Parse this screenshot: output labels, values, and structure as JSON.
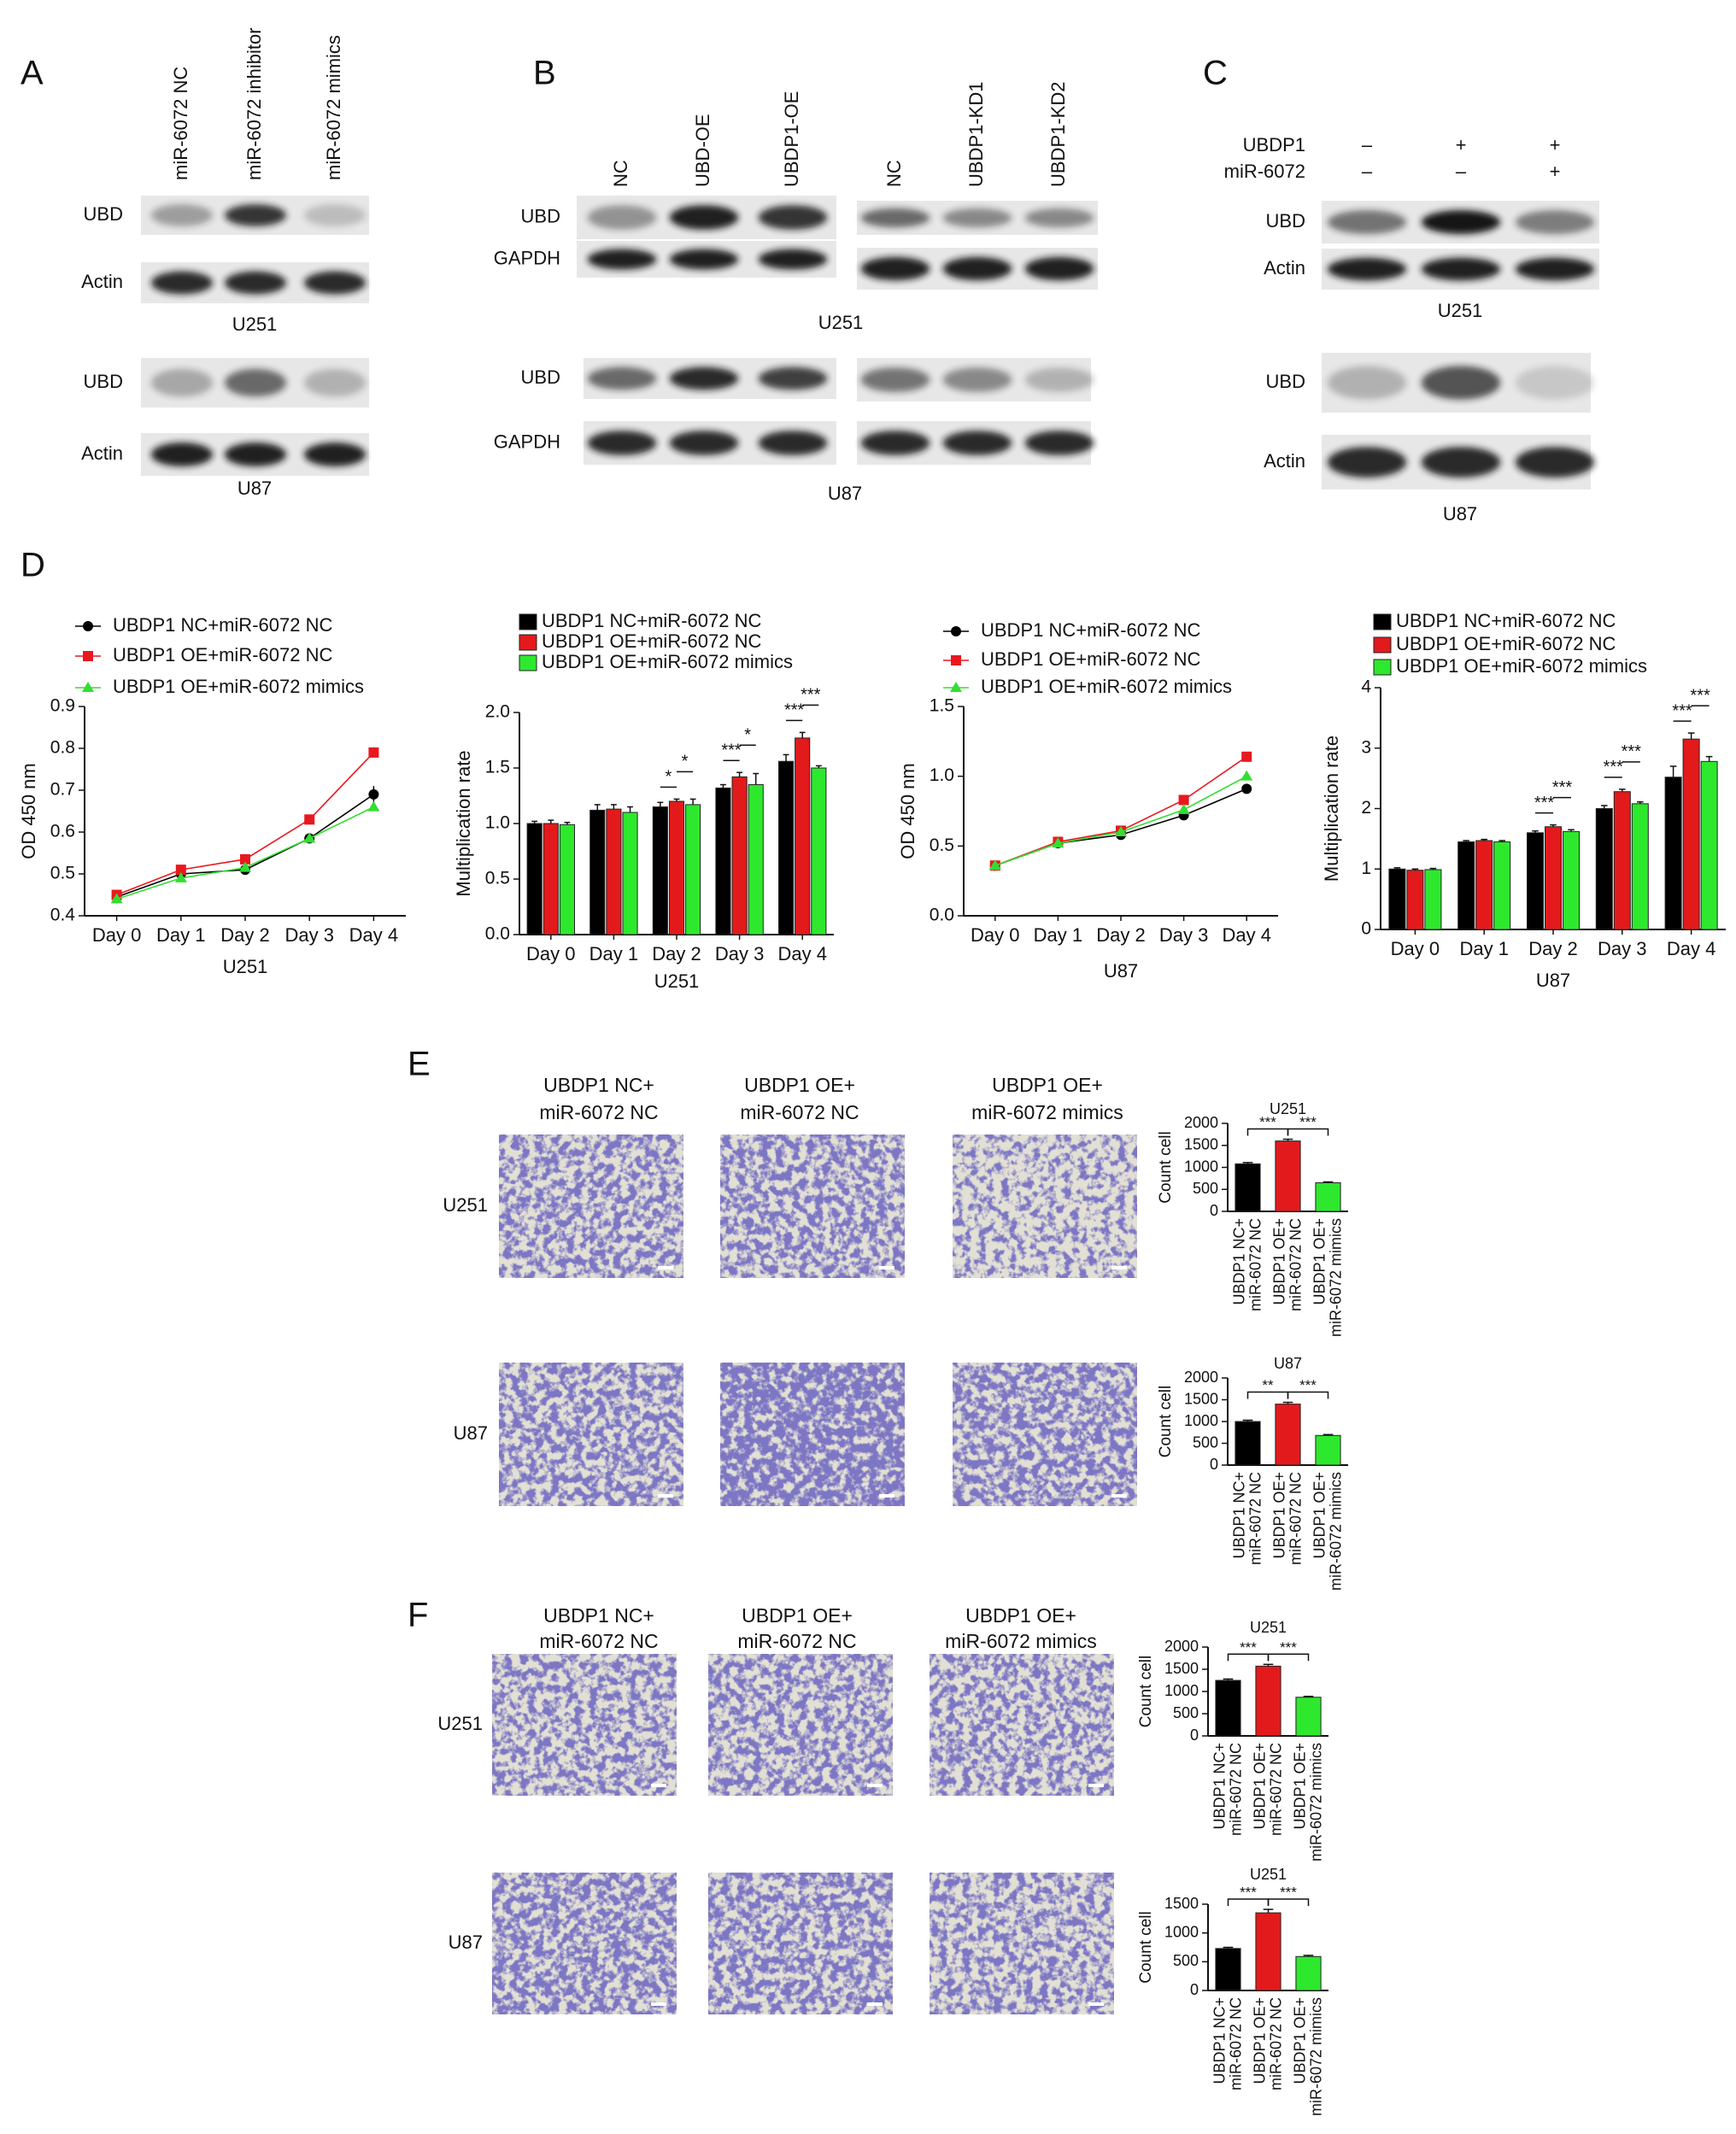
{
  "panel_letters": [
    "A",
    "B",
    "C",
    "D",
    "E",
    "F"
  ],
  "blots": [
    {
      "lanes": [
        "miR-6072 NC",
        "miR-6072 inhibitor",
        "miR-6072 mimics"
      ],
      "groups": [
        {
          "rows": [
            "UBD",
            "Actin"
          ],
          "cell": "U251"
        },
        {
          "rows": [
            "UBD",
            "Actin"
          ],
          "cell": "U87"
        }
      ]
    },
    {
      "lanes": [
        "NC",
        "UBD-OE",
        "UBDP1-OE",
        "NC",
        "UBDP1-KD1",
        "UBDP1-KD2"
      ],
      "groups": [
        {
          "rows": [
            "UBD",
            "GAPDH"
          ],
          "cell": "U251"
        },
        {
          "rows": [
            "UBD",
            "GAPDH"
          ],
          "cell": "U87"
        }
      ]
    },
    {
      "conditions": [
        {
          "name": "UBDP1",
          "marks": [
            "–",
            "+",
            "+"
          ]
        },
        {
          "name": "miR-6072",
          "marks": [
            "–",
            "–",
            "+"
          ]
        }
      ],
      "groups": [
        {
          "rows": [
            "UBD",
            "Actin"
          ],
          "cell": "U251"
        },
        {
          "rows": [
            "UBD",
            "Actin"
          ],
          "cell": "U87"
        }
      ]
    }
  ],
  "migration": [
    {
      "columns": [
        [
          "UBDP1 NC+",
          "miR-6072 NC"
        ],
        [
          "UBDP1 OE+",
          "miR-6072 NC"
        ],
        [
          "UBDP1 OE+",
          "miR-6072 mimics"
        ]
      ],
      "rows": [
        "U251",
        "U87"
      ]
    },
    {
      "columns": [
        [
          "UBDP1 NC+",
          "miR-6072 NC"
        ],
        [
          "UBDP1 OE+",
          "miR-6072 NC"
        ],
        [
          "UBDP1 OE+",
          "miR-6072 mimics"
        ]
      ],
      "rows": [
        "U251",
        "U87"
      ]
    }
  ],
  "chart_data": [
    {
      "type": "line",
      "xlabel": "U251",
      "ylabel": "OD 450 nm",
      "categories": [
        "Day 0",
        "Day 1",
        "Day 2",
        "Day 3",
        "Day 4"
      ],
      "ylim": [
        0.4,
        0.9
      ],
      "yticks": [
        0.4,
        0.5,
        0.6,
        0.7,
        0.8,
        0.9
      ],
      "series": [
        {
          "name": "UBDP1 NC+miR-6072 NC",
          "color": "#000000",
          "marker": "o",
          "values": [
            0.445,
            0.5,
            0.51,
            0.585,
            0.69
          ],
          "errors": [
            0.005,
            0.008,
            0.005,
            0.005,
            0.02
          ]
        },
        {
          "name": "UBDP1 OE+miR-6072 NC",
          "color": "#e8191e",
          "marker": "s",
          "values": [
            0.45,
            0.51,
            0.535,
            0.63,
            0.79
          ],
          "errors": [
            0.005,
            0.008,
            0.005,
            0.005,
            0.012
          ]
        },
        {
          "name": "UBDP1 OE+miR-6072 mimics",
          "color": "#33dd33",
          "marker": "^",
          "values": [
            0.44,
            0.49,
            0.515,
            0.585,
            0.66
          ],
          "errors": [
            0.005,
            0.005,
            0.005,
            0.005,
            0.005
          ]
        }
      ]
    },
    {
      "type": "bar",
      "xlabel": "U251",
      "ylabel": "Multiplication rate",
      "categories": [
        "Day 0",
        "Day 1",
        "Day 2",
        "Day 3",
        "Day 4"
      ],
      "ylim": [
        0,
        2
      ],
      "yticks": [
        {
          "value": 0,
          "label": "0.0"
        },
        0.5,
        {
          "value": 1,
          "label": "1.0"
        },
        1.5,
        {
          "value": 2,
          "label": "2.0"
        }
      ],
      "series": [
        {
          "name": "UBDP1 NC+miR-6072 NC",
          "color": "#000000",
          "values": [
            1.0,
            1.12,
            1.15,
            1.32,
            1.56
          ],
          "errors": [
            0.02,
            0.05,
            0.04,
            0.03,
            0.06
          ]
        },
        {
          "name": "UBDP1 OE+miR-6072 NC",
          "color": "#e31a1c",
          "values": [
            1.0,
            1.13,
            1.2,
            1.42,
            1.77
          ],
          "errors": [
            0.03,
            0.04,
            0.02,
            0.04,
            0.05
          ]
        },
        {
          "name": "UBDP1 OE+miR-6072 mimics",
          "color": "#2ee82e",
          "values": [
            0.99,
            1.1,
            1.17,
            1.35,
            1.5
          ],
          "errors": [
            0.02,
            0.05,
            0.05,
            0.1,
            0.02
          ]
        }
      ],
      "significance": [
        null,
        null,
        [
          "*",
          "*"
        ],
        [
          "***",
          "*"
        ],
        [
          "***",
          "***"
        ]
      ]
    },
    {
      "type": "line",
      "xlabel": "U87",
      "ylabel": "OD 450 nm",
      "categories": [
        "Day 0",
        "Day 1",
        "Day 2",
        "Day 3",
        "Day 4"
      ],
      "ylim": [
        0,
        1.5
      ],
      "yticks": [
        {
          "value": 0,
          "label": "0.0"
        },
        0.5,
        {
          "value": 1,
          "label": "1.0"
        },
        1.5
      ],
      "series": [
        {
          "name": "UBDP1 NC+miR-6072 NC",
          "color": "#000000",
          "marker": "o",
          "values": [
            0.36,
            0.52,
            0.58,
            0.72,
            0.91
          ],
          "errors": [
            0.02,
            0.02,
            0.02,
            0.02,
            0.02
          ]
        },
        {
          "name": "UBDP1 OE+miR-6072 NC",
          "color": "#e8191e",
          "marker": "s",
          "values": [
            0.36,
            0.53,
            0.61,
            0.83,
            1.14
          ],
          "errors": [
            0.02,
            0.02,
            0.02,
            0.02,
            0.02
          ]
        },
        {
          "name": "UBDP1 OE+miR-6072 mimics",
          "color": "#33dd33",
          "marker": "^",
          "values": [
            0.36,
            0.52,
            0.6,
            0.76,
            1.0
          ],
          "errors": [
            0.02,
            0.02,
            0.02,
            0.02,
            0.02
          ]
        }
      ]
    },
    {
      "type": "bar",
      "xlabel": "U87",
      "ylabel": "Multiplication rate",
      "categories": [
        "Day 0",
        "Day 1",
        "Day 2",
        "Day 3",
        "Day 4"
      ],
      "ylim": [
        0,
        4
      ],
      "yticks": [
        0,
        1,
        2,
        3,
        4
      ],
      "series": [
        {
          "name": "UBDP1 NC+miR-6072 NC",
          "color": "#000000",
          "values": [
            1.0,
            1.45,
            1.6,
            2.0,
            2.52
          ],
          "errors": [
            0.02,
            0.02,
            0.03,
            0.05,
            0.18
          ]
        },
        {
          "name": "UBDP1 OE+miR-6072 NC",
          "color": "#e31a1c",
          "values": [
            0.98,
            1.47,
            1.7,
            2.28,
            3.15
          ],
          "errors": [
            0.02,
            0.02,
            0.03,
            0.04,
            0.1
          ]
        },
        {
          "name": "UBDP1 OE+miR-6072 mimics",
          "color": "#2ee82e",
          "values": [
            0.99,
            1.45,
            1.62,
            2.08,
            2.78
          ],
          "errors": [
            0.02,
            0.02,
            0.03,
            0.03,
            0.08
          ]
        }
      ],
      "significance": [
        null,
        null,
        [
          "***",
          "***"
        ],
        [
          "***",
          "***"
        ],
        [
          "***",
          "***"
        ]
      ]
    },
    {
      "type": "bar",
      "title": "U251",
      "ylabel": "Count cell",
      "categories": [
        [
          "UBDP1 NC+",
          "miR-6072 NC"
        ],
        [
          "UBDP1 OE+",
          "miR-6072 NC"
        ],
        [
          "UBDP1 OE+",
          "miR-6072 mimics"
        ]
      ],
      "values": [
        1080,
        1600,
        650
      ],
      "errors": [
        30,
        40,
        20
      ],
      "colors": [
        "#000000",
        "#e31a1c",
        "#2ee82e"
      ],
      "ylim": [
        0,
        2000
      ],
      "yticks": [
        0,
        500,
        1000,
        1500,
        2000
      ],
      "significance": [
        "***",
        "***"
      ]
    },
    {
      "type": "bar",
      "title": "U87",
      "ylabel": "Count cell",
      "categories": [
        [
          "UBDP1 NC+",
          "miR-6072 NC"
        ],
        [
          "UBDP1 OE+",
          "miR-6072 NC"
        ],
        [
          "UBDP1 OE+",
          "miR-6072 mimics"
        ]
      ],
      "values": [
        1000,
        1400,
        680
      ],
      "errors": [
        30,
        40,
        20
      ],
      "colors": [
        "#000000",
        "#e31a1c",
        "#2ee82e"
      ],
      "ylim": [
        0,
        2000
      ],
      "yticks": [
        0,
        500,
        1000,
        1500,
        2000
      ],
      "significance": [
        "**",
        "***"
      ]
    },
    {
      "type": "bar",
      "title": "U251",
      "ylabel": "Count cell",
      "categories": [
        [
          "UBDP1 NC+",
          "miR-6072 NC"
        ],
        [
          "UBDP1 OE+",
          "miR-6072 NC"
        ],
        [
          "UBDP1 OE+",
          "miR-6072 mimics"
        ]
      ],
      "values": [
        1250,
        1570,
        870
      ],
      "errors": [
        30,
        40,
        20
      ],
      "colors": [
        "#000000",
        "#e31a1c",
        "#2ee82e"
      ],
      "ylim": [
        0,
        2000
      ],
      "yticks": [
        0,
        500,
        1000,
        1500,
        2000
      ],
      "significance": [
        "***",
        "***"
      ]
    },
    {
      "type": "bar",
      "title": "U251",
      "ylabel": "Count cell",
      "categories": [
        [
          "UBDP1 NC+",
          "miR-6072 NC"
        ],
        [
          "UBDP1 OE+",
          "miR-6072 NC"
        ],
        [
          "UBDP1 OE+",
          "miR-6072 mimics"
        ]
      ],
      "values": [
        730,
        1350,
        590
      ],
      "errors": [
        20,
        60,
        20
      ],
      "colors": [
        "#000000",
        "#e31a1c",
        "#2ee82e"
      ],
      "ylim": [
        0,
        1500
      ],
      "yticks": [
        0,
        500,
        1000,
        1500
      ],
      "significance": [
        "***",
        "***"
      ]
    }
  ]
}
